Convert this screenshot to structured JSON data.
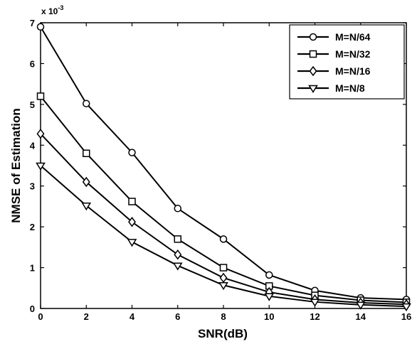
{
  "chart_data": {
    "type": "line",
    "title": "",
    "xlabel": "SNR(dB)",
    "ylabel": "NMSE of Estimation",
    "y_multiplier_label": "x 10",
    "y_multiplier_exp": "-3",
    "xlim": [
      0,
      16
    ],
    "ylim": [
      0,
      7
    ],
    "x_ticks": [
      "0",
      "2",
      "4",
      "6",
      "8",
      "10",
      "12",
      "14",
      "16"
    ],
    "y_ticks": [
      "0",
      "1",
      "2",
      "3",
      "4",
      "5",
      "6",
      "7"
    ],
    "grid": false,
    "legend_position": "top-right",
    "x": [
      0,
      2,
      4,
      6,
      8,
      10,
      12,
      14,
      16
    ],
    "series": [
      {
        "name": "M=N/64",
        "marker": "circle",
        "values": [
          6.9,
          5.02,
          3.82,
          2.45,
          1.7,
          0.82,
          0.44,
          0.26,
          0.22
        ]
      },
      {
        "name": "M=N/32",
        "marker": "square",
        "values": [
          5.2,
          3.8,
          2.62,
          1.7,
          1.0,
          0.55,
          0.32,
          0.2,
          0.15
        ]
      },
      {
        "name": "M=N/16",
        "marker": "diamond",
        "values": [
          4.28,
          3.1,
          2.12,
          1.32,
          0.75,
          0.4,
          0.22,
          0.14,
          0.1
        ]
      },
      {
        "name": "M=N/8",
        "marker": "triangle-down",
        "values": [
          3.5,
          2.52,
          1.63,
          1.05,
          0.57,
          0.3,
          0.16,
          0.09,
          0.05
        ]
      }
    ]
  }
}
